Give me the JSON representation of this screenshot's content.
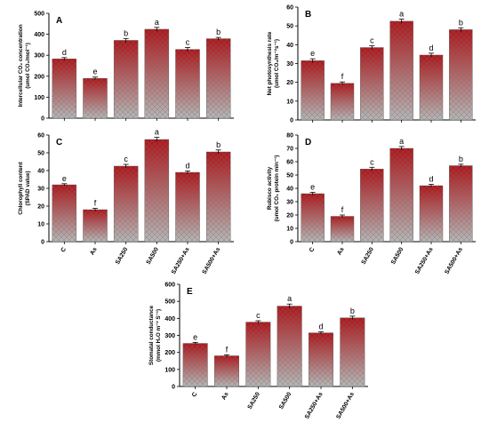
{
  "colors": {
    "bar_top": "#b01418",
    "bar_bottom": "#b8b8b8",
    "axis": "#000000",
    "hatch": "#6e6e6e"
  },
  "chart_data": [
    {
      "panel": "A",
      "type": "bar",
      "categories": [
        "C",
        "As",
        "SA250",
        "SA500",
        "SA250+As",
        "SA500+As"
      ],
      "values": [
        283,
        190,
        371,
        424,
        328,
        379
      ],
      "errors": [
        6,
        6,
        9,
        9,
        9,
        6
      ],
      "letters": [
        "d",
        "e",
        "b",
        "a",
        "c",
        "b"
      ],
      "ylabel_lines": [
        "Intercellular CO₂ concentration",
        "(umol CO₂/mol⁻¹)"
      ],
      "ylim": [
        0,
        500
      ],
      "yticks": [
        0,
        100,
        200,
        300,
        400,
        500
      ]
    },
    {
      "panel": "B",
      "type": "bar",
      "categories": [
        "C",
        "As",
        "SA250",
        "SA500",
        "SA250+As",
        "SA500+As"
      ],
      "values": [
        31.5,
        19.5,
        38.5,
        52.5,
        34.5,
        48.0
      ],
      "errors": [
        1.0,
        0.7,
        0.9,
        1.1,
        1.0,
        1.0
      ],
      "letters": [
        "e",
        "f",
        "c",
        "a",
        "d",
        "b"
      ],
      "ylabel_lines": [
        "Net photosynthesis rate",
        "(umol CO₂/m⁻²s⁻¹)"
      ],
      "ylim": [
        0,
        60
      ],
      "yticks": [
        0,
        10,
        20,
        30,
        40,
        50,
        60
      ]
    },
    {
      "panel": "C",
      "type": "bar",
      "categories": [
        "C",
        "As",
        "SA250",
        "SA500",
        "SA250+As",
        "SA500+As"
      ],
      "values": [
        32.0,
        18.0,
        42.5,
        57.5,
        39.0,
        50.5
      ],
      "errors": [
        0.6,
        0.8,
        1.0,
        1.2,
        0.8,
        1.1
      ],
      "letters": [
        "e",
        "f",
        "c",
        "a",
        "d",
        "b"
      ],
      "ylabel_lines": [
        "Chlorophyll content",
        "(SPAD value)"
      ],
      "ylim": [
        0,
        60
      ],
      "yticks": [
        0,
        10,
        20,
        30,
        40,
        50,
        60
      ]
    },
    {
      "panel": "D",
      "type": "bar",
      "categories": [
        "C",
        "As",
        "SA250",
        "SA500",
        "SA250+As",
        "SA500+As"
      ],
      "values": [
        36.0,
        19.0,
        54.5,
        70.0,
        42.0,
        57.0
      ],
      "errors": [
        1.0,
        1.0,
        1.3,
        1.4,
        1.0,
        1.1
      ],
      "letters": [
        "e",
        "f",
        "c",
        "a",
        "d",
        "b"
      ],
      "ylabel_lines": [
        "Rubisco activity",
        "(umol CO₂ protein min⁻¹)"
      ],
      "ylim": [
        0,
        80
      ],
      "yticks": [
        0,
        10,
        20,
        30,
        40,
        50,
        60,
        70,
        80
      ]
    },
    {
      "panel": "E",
      "type": "bar",
      "categories": [
        "C",
        "As",
        "SA250",
        "SA500",
        "SA250+As",
        "SA500+As"
      ],
      "values": [
        253,
        180,
        378,
        472,
        315,
        403
      ],
      "errors": [
        6,
        6,
        8,
        12,
        7,
        10
      ],
      "letters": [
        "e",
        "f",
        "c",
        "a",
        "d",
        "b"
      ],
      "ylabel_lines": [
        "Stomatal conductance",
        "(mmol H₂O m⁻² S⁻¹)"
      ],
      "ylim": [
        0,
        600
      ],
      "yticks": [
        0,
        100,
        200,
        300,
        400,
        500,
        600
      ]
    }
  ]
}
